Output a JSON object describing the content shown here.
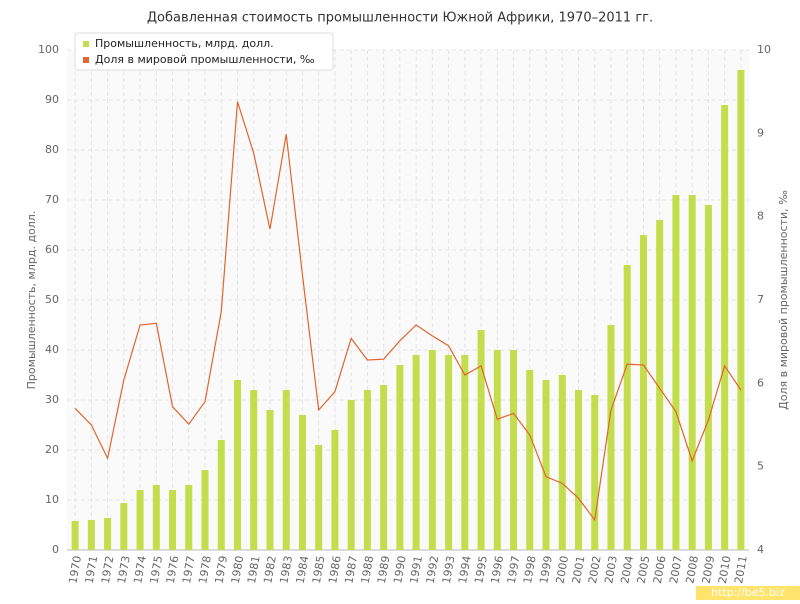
{
  "chart_data": {
    "type": "bar",
    "title": "Добавленная стоимость промышленности Южной Африки, 1970–2011 гг.",
    "y_label": "Промышленность, млрд. долл.",
    "y2_label": "Доля в мировой промышленности, ‰",
    "watermark": "http://be5.biz",
    "categories": [
      "1970",
      "1971",
      "1972",
      "1973",
      "1974",
      "1975",
      "1976",
      "1977",
      "1978",
      "1979",
      "1980",
      "1981",
      "1982",
      "1983",
      "1984",
      "1985",
      "1986",
      "1987",
      "1988",
      "1989",
      "1990",
      "1991",
      "1992",
      "1993",
      "1994",
      "1995",
      "1996",
      "1997",
      "1998",
      "1999",
      "2000",
      "2001",
      "2002",
      "2003",
      "2004",
      "2005",
      "2006",
      "2007",
      "2008",
      "2009",
      "2010",
      "2011"
    ],
    "series": [
      {
        "name": "Промышленность, млрд. долл.",
        "type": "bar",
        "color": "#c3dd4c",
        "values": [
          5.8,
          6,
          6.4,
          9.4,
          12,
          13,
          12,
          13,
          16,
          22,
          34,
          32,
          28,
          32,
          27,
          21,
          24,
          30,
          32,
          33,
          37,
          39,
          40,
          39,
          39,
          44,
          40,
          40,
          36,
          34,
          35,
          32,
          31,
          45,
          57,
          63,
          66,
          71,
          71,
          69,
          89,
          96
        ]
      },
      {
        "name": "Доля в мировой промышленности, ‰",
        "type": "line",
        "axis": "y2",
        "color": "#e0652f",
        "values": [
          5.7,
          5.5,
          5.1,
          6.04,
          6.7,
          6.72,
          5.72,
          5.51,
          5.78,
          6.86,
          9.38,
          8.76,
          7.85,
          8.99,
          7.3,
          5.68,
          5.9,
          6.54,
          6.28,
          6.29,
          6.51,
          6.7,
          6.57,
          6.45,
          6.1,
          6.21,
          5.57,
          5.64,
          5.38,
          4.88,
          4.8,
          4.62,
          4.36,
          5.68,
          6.23,
          6.22,
          5.94,
          5.66,
          5.07,
          5.56,
          6.21,
          5.92
        ]
      }
    ],
    "ylim": [
      0,
      100
    ],
    "yticks": [
      0,
      10,
      20,
      30,
      40,
      50,
      60,
      70,
      80,
      90,
      100
    ],
    "y2lim": [
      4,
      10
    ],
    "y2ticks": [
      4,
      5,
      6,
      7,
      8,
      9,
      10
    ],
    "grid": true,
    "legend": "top-left"
  }
}
